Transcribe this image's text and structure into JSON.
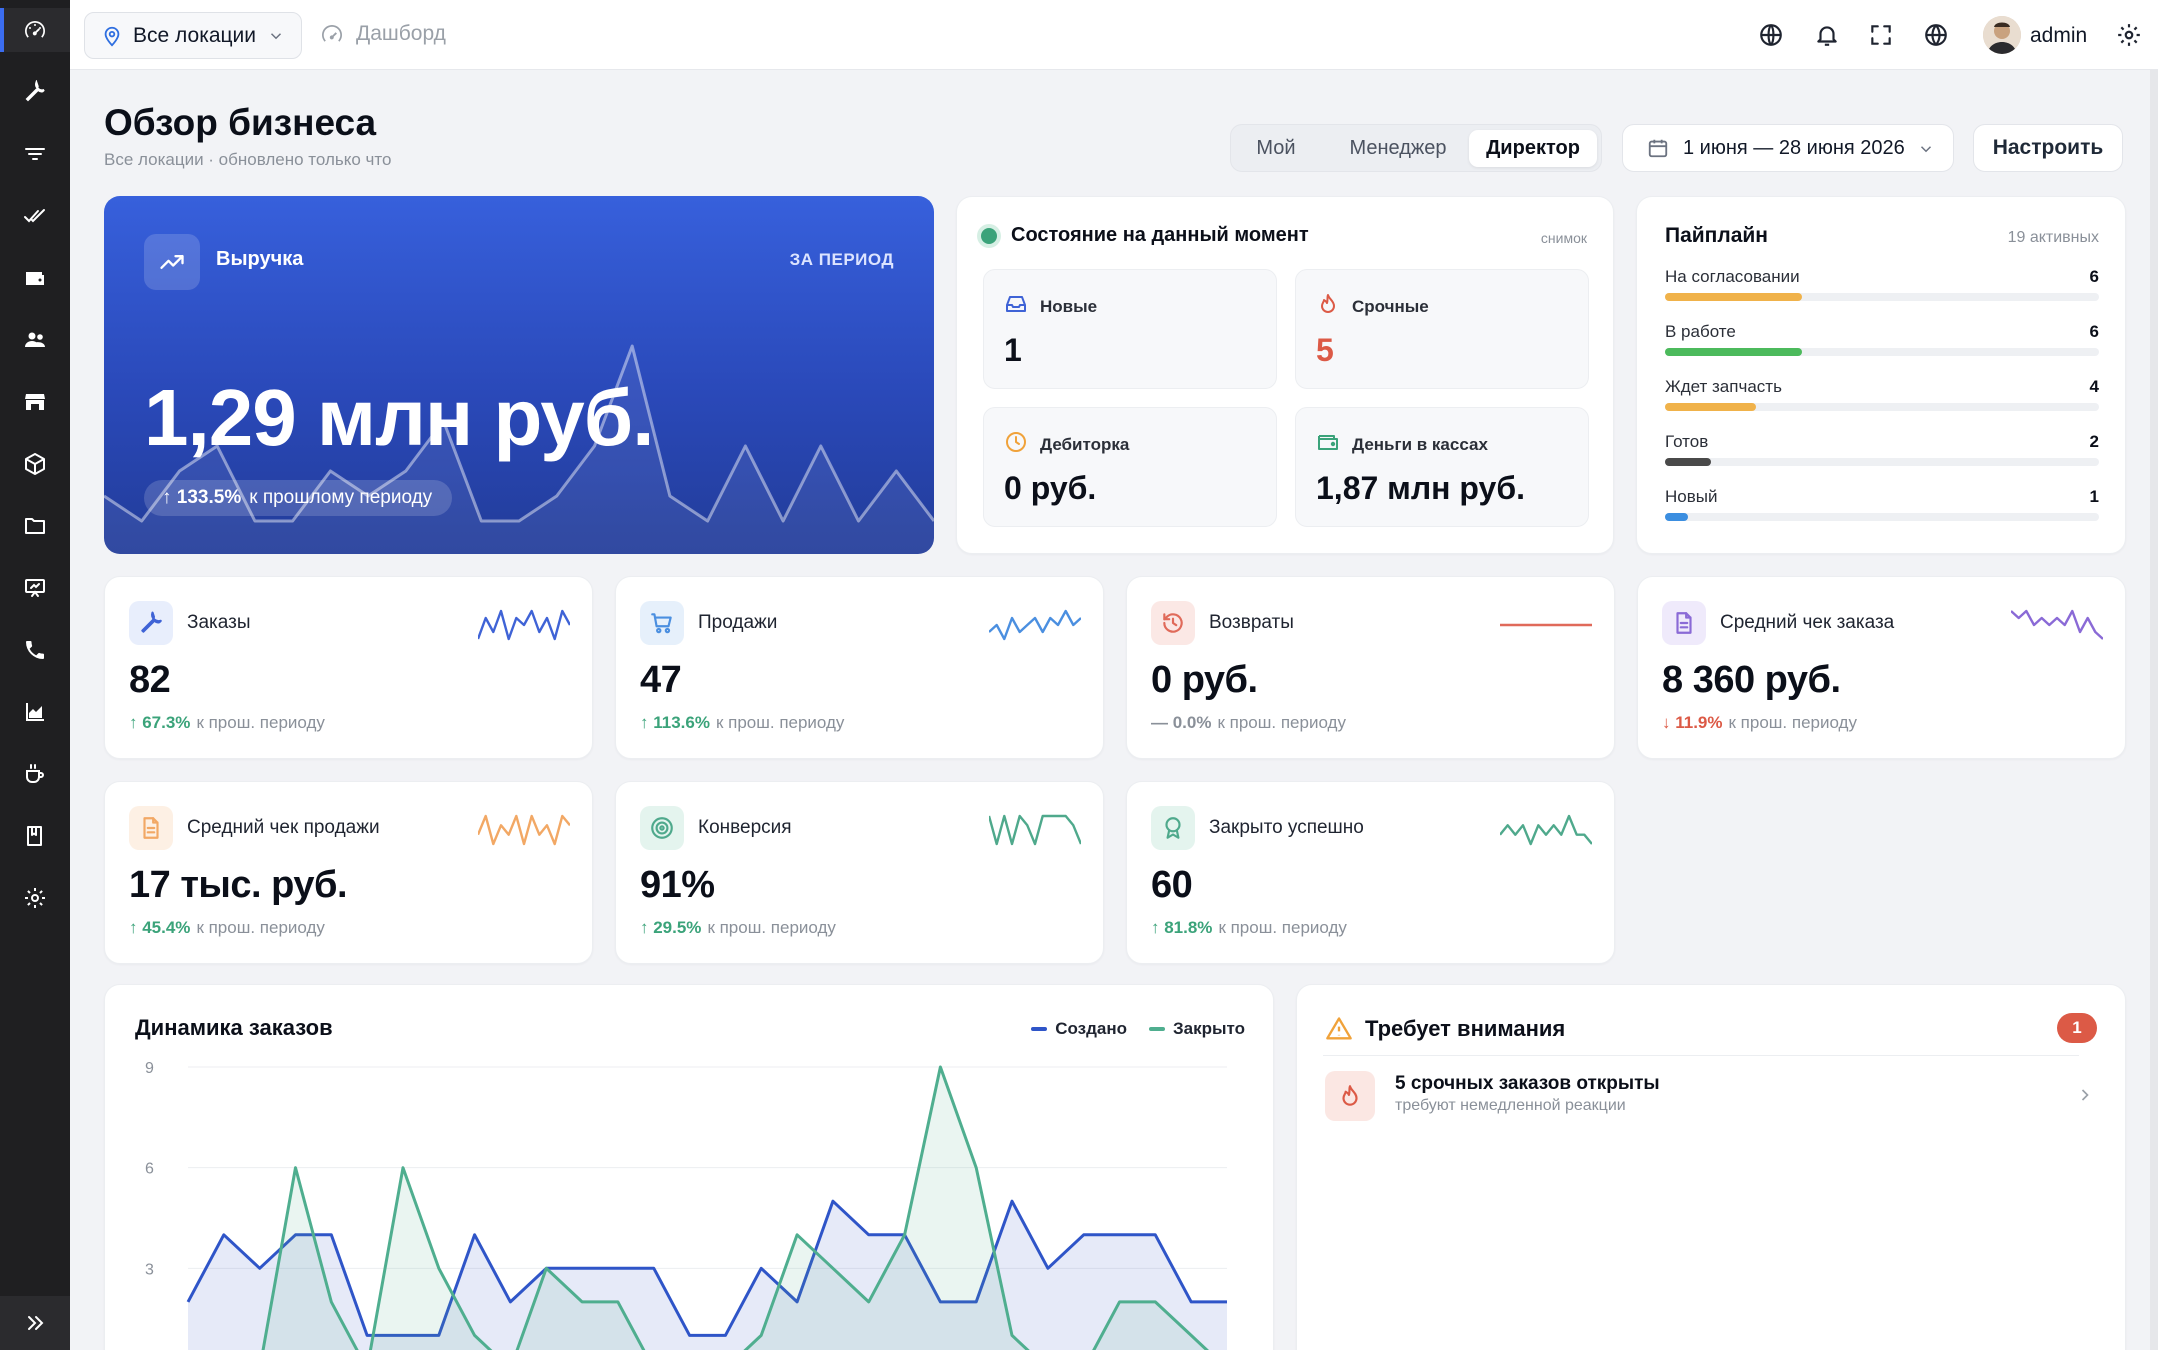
{
  "topbar": {
    "location": "Все локации",
    "breadcrumb": "Дашборд",
    "user": "admin"
  },
  "header": {
    "title": "Обзор бизнеса",
    "subtitle": "Все локации · обновлено только что",
    "roles": [
      "Мой",
      "Менеджер",
      "Директор"
    ],
    "active_role": "Директор",
    "date_range": "1 июня — 28 июня 2026",
    "configure": "Настроить"
  },
  "revenue": {
    "label": "Выручка",
    "period": "ЗА ПЕРИОД",
    "value": "1,29 млн руб.",
    "delta": "↑ 133.5%",
    "delta_text": "к прошлому периоду",
    "sparkline": [
      2,
      1,
      3,
      4,
      1,
      1,
      3,
      2,
      3,
      5,
      1,
      1,
      2,
      4,
      8,
      2,
      1,
      4,
      1,
      4,
      1,
      3,
      1
    ]
  },
  "snapshot": {
    "title": "Состояние на данный момент",
    "tag": "снимок",
    "tiles": [
      {
        "label": "Новые",
        "value": "1",
        "color": "#0b0f19"
      },
      {
        "label": "Срочные",
        "value": "5",
        "color": "#dc5a46"
      },
      {
        "label": "Дебиторка",
        "value": "0 руб.",
        "color": "#0b0f19"
      },
      {
        "label": "Деньги в кассах",
        "value": "1,87 млн руб.",
        "color": "#0b0f19"
      }
    ]
  },
  "pipeline": {
    "title": "Пайплайн",
    "count": "19 активных",
    "max": 19,
    "rows": [
      {
        "name": "На согласовании",
        "value": 6,
        "color": "#f0b24a"
      },
      {
        "name": "В работе",
        "value": 6,
        "color": "#4cba5c"
      },
      {
        "name": "Ждет запчасть",
        "value": 4,
        "color": "#f0b24a"
      },
      {
        "name": "Готов",
        "value": 2,
        "color": "#4a4a4a"
      },
      {
        "name": "Новый",
        "value": 1,
        "color": "#3b8ee0"
      }
    ]
  },
  "kpis": [
    {
      "label": "Заказы",
      "value": "82",
      "delta": "↑ 67.3%",
      "delta_text": "к прош. периоду",
      "trend": "up",
      "color": "#3f63d6",
      "icon_bg": "#e8eefc",
      "icon": "wrench-icon",
      "spark": [
        2,
        5,
        3,
        6,
        2,
        5,
        4,
        6,
        3,
        5,
        2,
        6,
        4
      ]
    },
    {
      "label": "Продажи",
      "value": "47",
      "delta": "↑ 113.6%",
      "delta_text": "к прош. периоду",
      "trend": "up",
      "color": "#4b8fe0",
      "icon_bg": "#e6f0fb",
      "icon": "cart-icon",
      "spark": [
        3,
        4,
        2,
        5,
        3,
        4,
        5,
        3,
        5,
        4,
        6,
        4,
        5
      ]
    },
    {
      "label": "Возвраты",
      "value": "0 руб.",
      "delta": "— 0.0%",
      "delta_text": "к прош. периоду",
      "trend": "flat",
      "color": "#e06a5a",
      "icon_bg": "#fbe8e5",
      "icon": "undo-icon",
      "spark": [
        3,
        3,
        3,
        3,
        3,
        3,
        3,
        3,
        3,
        3,
        3,
        3,
        3
      ]
    },
    {
      "label": "Средний чек заказа",
      "value": "8 360 руб.",
      "delta": "↓ 11.9%",
      "delta_text": "к прош. периоду",
      "trend": "down",
      "color": "#8a6ad6",
      "icon_bg": "#efeafb",
      "icon": "document-icon",
      "spark": [
        5,
        4,
        5,
        3,
        4,
        3,
        4,
        3,
        5,
        2,
        4,
        2,
        1
      ]
    },
    {
      "label": "Средний чек продажи",
      "value": "17 тыс. руб.",
      "delta": "↑ 45.4%",
      "delta_text": "к прош. периоду",
      "trend": "up",
      "color": "#f2a865",
      "icon_bg": "#fdf0e4",
      "icon": "document-icon",
      "spark": [
        3,
        5,
        2,
        4,
        3,
        5,
        2,
        5,
        3,
        4,
        2,
        5,
        4
      ]
    },
    {
      "label": "Конверсия",
      "value": "91%",
      "delta": "↑ 29.5%",
      "delta_text": "к прош. периоду",
      "trend": "up",
      "color": "#4fa98c",
      "icon_bg": "#e4f4ee",
      "icon": "target-icon",
      "spark": [
        5,
        2,
        5,
        2,
        5,
        4,
        2,
        5,
        5,
        5,
        5,
        4,
        2
      ]
    },
    {
      "label": "Закрыто успешно",
      "value": "60",
      "delta": "↑ 81.8%",
      "delta_text": "к прош. периоду",
      "trend": "up",
      "color": "#4fa98c",
      "icon_bg": "#e4f4ee",
      "icon": "award-icon",
      "spark": [
        2,
        3,
        2,
        3,
        1,
        3,
        2,
        3,
        2,
        4,
        2,
        2,
        1
      ]
    }
  ],
  "orders_chart": {
    "title": "Динамика заказов",
    "legend": [
      {
        "name": "Создано",
        "color": "#2f55c8"
      },
      {
        "name": "Закрыто",
        "color": "#4fae8f"
      }
    ]
  },
  "chart_data": {
    "type": "area",
    "title": "Динамика заказов",
    "y_ticks": [
      "9",
      "6",
      "3"
    ],
    "ylim": [
      0,
      9
    ],
    "series": [
      {
        "name": "Создано",
        "color": "#2f55c8",
        "values": [
          2,
          4,
          3,
          4,
          4,
          1,
          1,
          1,
          4,
          2,
          3,
          3,
          3,
          3,
          1,
          1,
          3,
          2,
          5,
          4,
          4,
          2,
          2,
          5,
          3,
          4,
          4,
          4,
          2,
          2
        ]
      },
      {
        "name": "Закрыто",
        "color": "#4fae8f",
        "values": [
          0,
          0,
          0,
          6,
          2,
          0,
          6,
          3,
          1,
          0,
          3,
          2,
          2,
          0,
          0,
          0,
          1,
          4,
          3,
          2,
          4,
          9,
          6,
          1,
          0,
          0,
          2,
          2,
          1,
          0
        ]
      }
    ]
  },
  "attention": {
    "title": "Требует внимания",
    "badge": "1",
    "items": [
      {
        "title": "5 срочных заказов открыты",
        "subtitle": "требуют немедленной реакции"
      }
    ]
  }
}
